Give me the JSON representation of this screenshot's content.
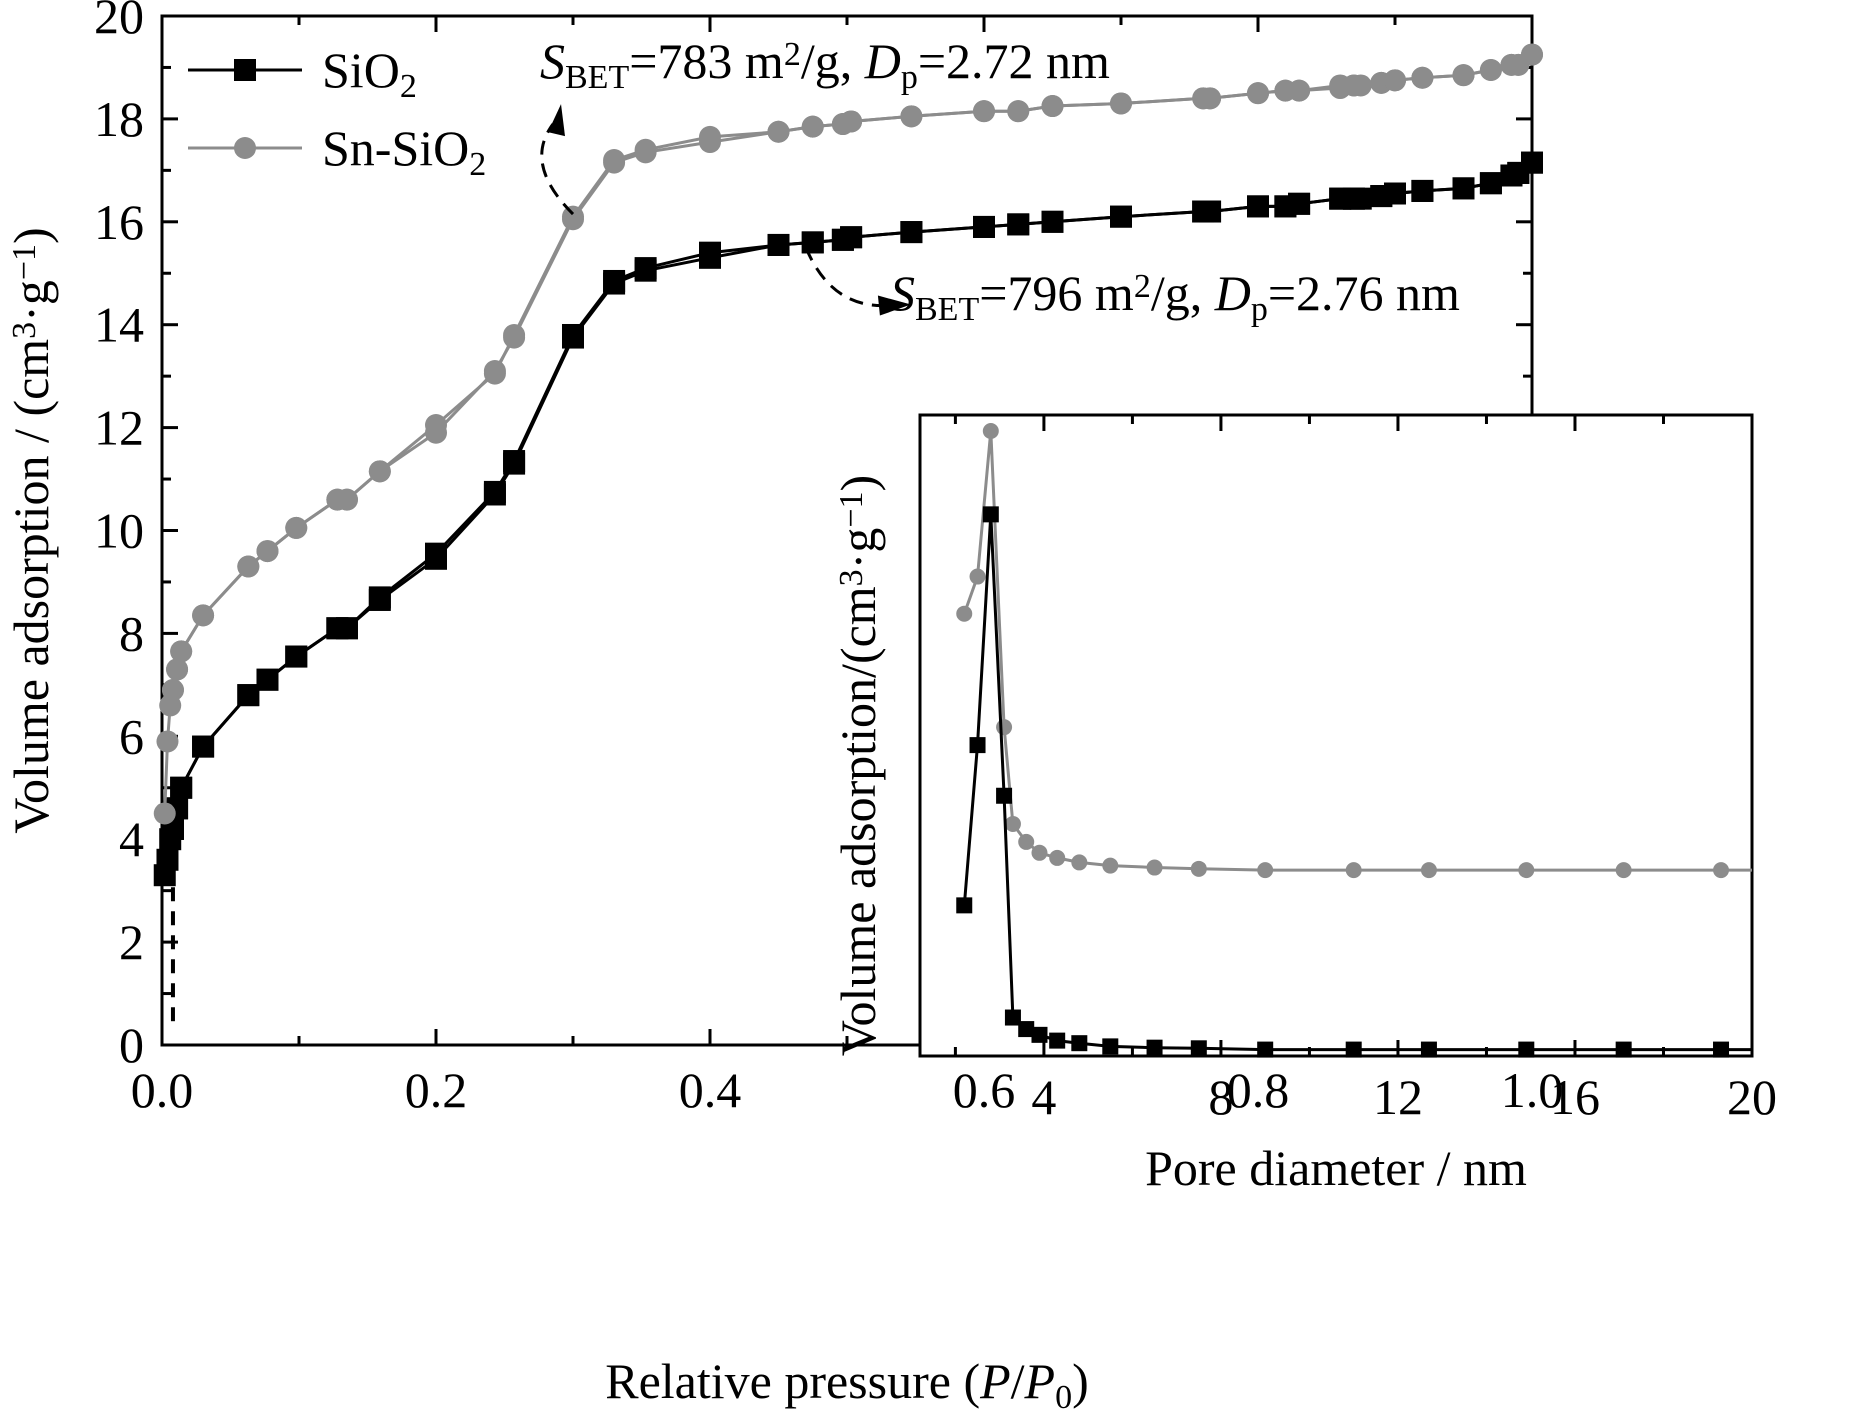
{
  "chart_data": [
    {
      "type": "line",
      "xlabel": "Relative pressure (P/P0)",
      "xlabel_parts": [
        "Relative pressure (",
        "P",
        "/",
        "P",
        "0",
        ")"
      ],
      "ylabel": "Volume adsorption / (cm3·g−1)",
      "ylabel_parts": [
        "Volume adsorption / (cm",
        "3",
        "·g",
        "−1",
        ")"
      ],
      "xlim": [
        0.0,
        1.0
      ],
      "ylim": [
        0,
        20
      ],
      "x_ticks": [
        "0.0",
        "0.2",
        "0.4",
        "0.6",
        "0.8",
        "1.0"
      ],
      "y_ticks": [
        "0",
        "2",
        "4",
        "6",
        "8",
        "10",
        "12",
        "14",
        "16",
        "18",
        "20"
      ],
      "grid": false,
      "legend_position": "top-left",
      "legend": [
        {
          "label_parts": [
            "SiO",
            "2",
            ""
          ],
          "color": "#000000",
          "marker": "square"
        },
        {
          "label_parts": [
            "Sn-SiO",
            "2",
            ""
          ],
          "color": "#8c8c8c",
          "marker": "circle"
        }
      ],
      "annotations": [
        {
          "for": "Sn-SiO2",
          "parts": [
            "S",
            "BET",
            "=783 m",
            "2",
            "/g, ",
            "D",
            "p",
            "=2.72 nm"
          ]
        },
        {
          "for": "SiO2",
          "parts": [
            "S",
            "BET",
            "=796 m",
            "2",
            "/g, ",
            "D",
            "p",
            "=2.76 nm"
          ]
        }
      ],
      "series": [
        {
          "name": "SiO2",
          "color": "#000000",
          "marker": "square",
          "adsorption": {
            "x": [
              0.002,
              0.004,
              0.006,
              0.008,
              0.011,
              0.014,
              0.03,
              0.063,
              0.077,
              0.098,
              0.128,
              0.135,
              0.159,
              0.2,
              0.243,
              0.257,
              0.3,
              0.33,
              0.353,
              0.4,
              0.45,
              0.475,
              0.497,
              0.503,
              0.547,
              0.6,
              0.625,
              0.65,
              0.7,
              0.76,
              0.765,
              0.8,
              0.82,
              0.83,
              0.86,
              0.87,
              0.875,
              0.89,
              0.9,
              0.92,
              0.95,
              0.97,
              0.985,
              0.99,
              1.0
            ],
            "y": [
              3.3,
              3.6,
              4.0,
              4.2,
              4.6,
              5.0,
              5.8,
              6.8,
              7.1,
              7.55,
              8.1,
              8.1,
              8.65,
              9.45,
              10.7,
              11.3,
              13.75,
              14.8,
              15.05,
              15.3,
              15.55,
              15.6,
              15.65,
              15.7,
              15.8,
              15.9,
              15.95,
              16.0,
              16.1,
              16.2,
              16.2,
              16.3,
              16.3,
              16.35,
              16.45,
              16.45,
              16.45,
              16.5,
              16.55,
              16.6,
              16.65,
              16.75,
              16.9,
              16.95,
              17.15
            ]
          },
          "desorption": {
            "x": [
              1.0,
              0.99,
              0.985,
              0.97,
              0.95,
              0.92,
              0.9,
              0.89,
              0.87,
              0.86,
              0.83,
              0.82,
              0.8,
              0.765,
              0.76,
              0.7,
              0.65,
              0.625,
              0.6,
              0.547,
              0.503,
              0.497,
              0.475,
              0.45,
              0.4,
              0.353,
              0.33,
              0.3,
              0.257,
              0.243,
              0.2,
              0.159,
              0.135,
              0.128,
              0.098,
              0.077,
              0.063,
              0.03,
              0.014,
              0.011,
              0.008
            ],
            "y": [
              17.15,
              16.95,
              16.9,
              16.75,
              16.65,
              16.6,
              16.55,
              16.5,
              16.45,
              16.45,
              16.35,
              16.3,
              16.3,
              16.2,
              16.2,
              16.1,
              16.0,
              15.95,
              15.9,
              15.8,
              15.7,
              15.65,
              15.6,
              15.55,
              15.4,
              15.1,
              14.85,
              13.8,
              11.35,
              10.75,
              9.55,
              8.7,
              8.1,
              8.1,
              7.55,
              7.1,
              6.8,
              5.8,
              5.0,
              4.6,
              4.2
            ]
          }
        },
        {
          "name": "Sn-SiO2",
          "color": "#8c8c8c",
          "marker": "circle",
          "adsorption": {
            "x": [
              0.002,
              0.004,
              0.006,
              0.008,
              0.011,
              0.014,
              0.03,
              0.063,
              0.077,
              0.098,
              0.128,
              0.135,
              0.159,
              0.2,
              0.243,
              0.257,
              0.3,
              0.33,
              0.353,
              0.4,
              0.45,
              0.475,
              0.497,
              0.503,
              0.547,
              0.6,
              0.625,
              0.65,
              0.7,
              0.76,
              0.765,
              0.8,
              0.82,
              0.83,
              0.86,
              0.87,
              0.875,
              0.89,
              0.9,
              0.92,
              0.95,
              0.97,
              0.985,
              0.99,
              1.0
            ],
            "y": [
              4.5,
              5.9,
              6.6,
              6.9,
              7.3,
              7.65,
              8.35,
              9.3,
              9.6,
              10.05,
              10.6,
              10.6,
              11.15,
              11.9,
              13.1,
              13.75,
              16.05,
              17.15,
              17.35,
              17.55,
              17.75,
              17.85,
              17.9,
              17.95,
              18.05,
              18.15,
              18.15,
              18.25,
              18.3,
              18.4,
              18.4,
              18.5,
              18.55,
              18.55,
              18.6,
              18.65,
              18.65,
              18.7,
              18.75,
              18.8,
              18.85,
              18.95,
              19.05,
              19.05,
              19.25
            ]
          },
          "desorption": {
            "x": [
              1.0,
              0.99,
              0.985,
              0.97,
              0.95,
              0.92,
              0.9,
              0.89,
              0.87,
              0.86,
              0.83,
              0.82,
              0.8,
              0.765,
              0.76,
              0.7,
              0.65,
              0.625,
              0.6,
              0.547,
              0.503,
              0.497,
              0.475,
              0.45,
              0.4,
              0.353,
              0.33,
              0.3,
              0.257,
              0.243,
              0.2,
              0.159,
              0.135,
              0.128,
              0.098,
              0.077,
              0.063,
              0.03,
              0.014,
              0.011,
              0.008
            ],
            "y": [
              19.25,
              19.05,
              19.05,
              18.95,
              18.85,
              18.8,
              18.75,
              18.7,
              18.65,
              18.65,
              18.55,
              18.55,
              18.5,
              18.4,
              18.4,
              18.3,
              18.25,
              18.15,
              18.15,
              18.05,
              17.95,
              17.9,
              17.85,
              17.75,
              17.65,
              17.4,
              17.2,
              16.1,
              13.8,
              13.05,
              12.05,
              11.15,
              10.6,
              10.6,
              10.05,
              9.6,
              9.3,
              8.35,
              7.65,
              7.3,
              6.9
            ]
          }
        }
      ]
    },
    {
      "type": "line",
      "role": "inset",
      "xlabel": "Pore diameter / nm",
      "ylabel": "Volume adsorption/(cm3·g−1)",
      "ylabel_parts": [
        "Volume adsorption/(cm",
        "3",
        "·g",
        "−1",
        ")"
      ],
      "xlim": [
        1.2,
        20
      ],
      "ylim": [
        0,
        1
      ],
      "y_ticks_labeled": false,
      "x_ticks": [
        "4",
        "8",
        "12",
        "16",
        "20"
      ],
      "grid": false,
      "series": [
        {
          "name": "SiO2",
          "color": "#000000",
          "marker": "square",
          "x": [
            2.2,
            2.5,
            2.8,
            3.1,
            3.3,
            3.6,
            3.9,
            4.3,
            4.8,
            5.5,
            6.5,
            7.5,
            9.0,
            11.0,
            12.7,
            14.9,
            17.1,
            19.3
          ],
          "y": [
            0.235,
            0.485,
            0.845,
            0.406,
            0.06,
            0.042,
            0.033,
            0.024,
            0.02,
            0.015,
            0.013,
            0.012,
            0.01,
            0.01,
            0.01,
            0.01,
            0.01,
            0.01
          ]
        },
        {
          "name": "Sn-SiO2",
          "color": "#8c8c8c",
          "marker": "circle",
          "x": [
            2.2,
            2.5,
            2.8,
            3.1,
            3.3,
            3.6,
            3.9,
            4.3,
            4.8,
            5.5,
            6.5,
            7.5,
            9.0,
            11.0,
            12.7,
            14.9,
            17.1,
            19.3
          ],
          "y": [
            0.69,
            0.748,
            0.975,
            0.513,
            0.362,
            0.334,
            0.317,
            0.309,
            0.302,
            0.297,
            0.294,
            0.292,
            0.29,
            0.29,
            0.29,
            0.29,
            0.29,
            0.29
          ]
        }
      ]
    }
  ]
}
